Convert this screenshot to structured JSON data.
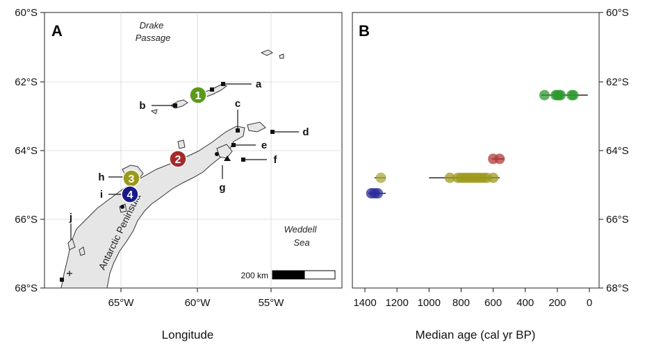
{
  "panel_a": {
    "letter": "A",
    "x_title": "Longitude",
    "y_ticks": [
      "60°S",
      "62°S",
      "64°S",
      "66°S",
      "68°S"
    ],
    "x_ticks": [
      "65°W",
      "60°W",
      "55°W"
    ],
    "place_names": [
      "Drake",
      "Passage",
      "Weddell",
      "Sea",
      "Antarctic Peninsula"
    ],
    "scale_bar_label": "200 km",
    "site_labels": [
      "a",
      "b",
      "c",
      "d",
      "e",
      "f",
      "g",
      "h",
      "i",
      "j"
    ],
    "region_markers": [
      {
        "number": "1",
        "color": "#5a9a1a"
      },
      {
        "number": "2",
        "color": "#a52a2a"
      },
      {
        "number": "3",
        "color": "#9a9a1a"
      },
      {
        "number": "4",
        "color": "#1a1a8c"
      }
    ]
  },
  "panel_b": {
    "letter": "B",
    "x_title": "Median age (cal yr BP)",
    "x_ticks": [
      "1400",
      "1200",
      "1000",
      "800",
      "600",
      "400",
      "200",
      "0"
    ],
    "y_ticks": [
      "60°S",
      "62°S",
      "64°S",
      "66°S",
      "68°S"
    ]
  },
  "chart_data": {
    "type": "scatter",
    "xlabel": "Median age (cal yr BP)",
    "ylabel": "",
    "xlim": [
      1400,
      0
    ],
    "ylim": [
      60,
      68
    ],
    "x_reversed": true,
    "series": [
      {
        "region": "1",
        "color": "#2e9a2e",
        "lat": 62.4,
        "range": [
          300,
          10
        ],
        "points": [
          280,
          210,
          200,
          190,
          180,
          110,
          100
        ]
      },
      {
        "region": "2",
        "color": "#b23a3a",
        "lat": 64.25,
        "range": [
          610,
          530
        ],
        "points": [
          600,
          560
        ]
      },
      {
        "region": "3",
        "color": "#9c9a1c",
        "lat": 64.8,
        "range": [
          1000,
          560
        ],
        "points": [
          870,
          820,
          800,
          780,
          760,
          740,
          720,
          700,
          680,
          660,
          640,
          600
        ]
      },
      {
        "region": "3",
        "color": "#a8a83a",
        "lat": 64.8,
        "range": [
          1340,
          1270
        ],
        "points": [
          1300
        ]
      },
      {
        "region": "4",
        "color": "#2a2a9a",
        "lat": 65.25,
        "range": [
          1380,
          1270
        ],
        "points": [
          1360,
          1340,
          1320
        ]
      }
    ]
  }
}
